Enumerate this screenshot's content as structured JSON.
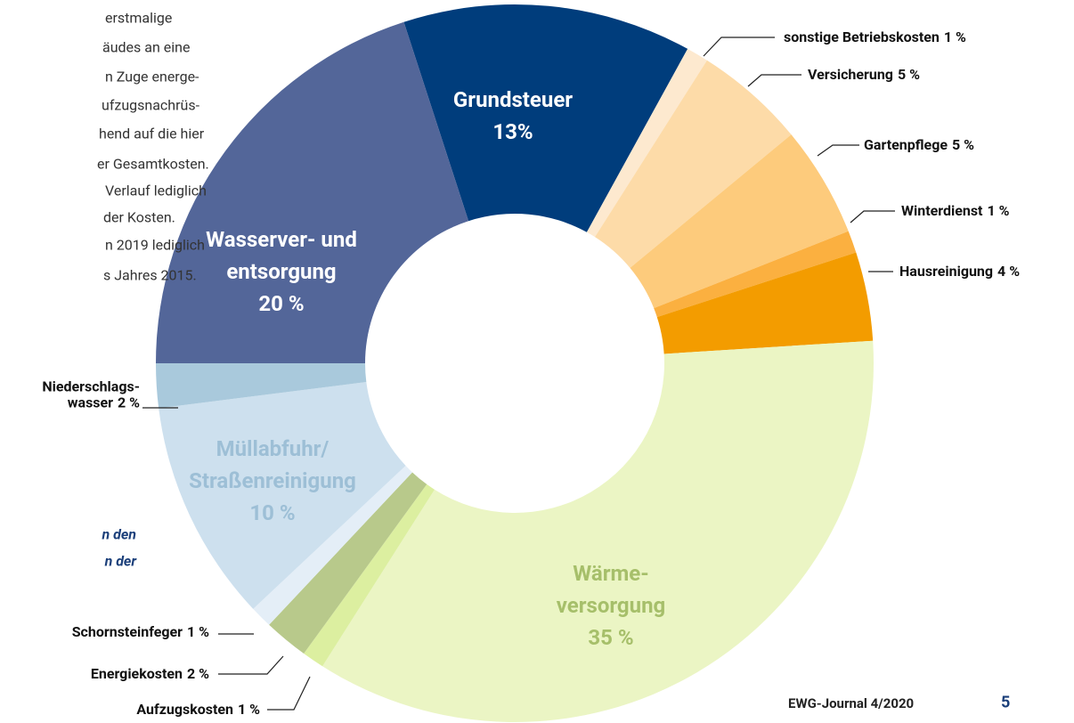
{
  "body_text": {
    "lines": [
      "erstmalige",
      "äudes an eine",
      "n Zuge energe-",
      "ufzugsnachrüs-",
      "hend auf die hier",
      "er Gesamtkosten.",
      "Verlauf lediglich",
      "der Kosten.",
      "n 2019 lediglich",
      "s Jahres 2015."
    ],
    "caption": [
      "n den",
      "n der"
    ]
  },
  "footer": {
    "journal": "EWG-Journal 4/2020",
    "page": "5"
  },
  "chart_data": {
    "type": "donut",
    "categories": [
      "Grundsteuer",
      "sonstige Betriebskosten",
      "Versicherung",
      "Gartenpflege",
      "Winterdienst",
      "Hausreinigung",
      "Wärme-\nversorgung",
      "Aufzugskosten",
      "Energiekosten",
      "Schornsteinfeger",
      "Müllabfuhr/\nStraßenreinigung",
      "Niederschlags-\nwasser",
      "Wasserver- und\nentsorgung"
    ],
    "values": [
      13,
      1,
      5,
      5,
      1,
      4,
      35,
      1,
      2,
      1,
      10,
      2,
      20
    ],
    "value_labels": [
      "13%",
      "1 %",
      "5 %",
      "5 %",
      "1 %",
      "4 %",
      "35 %",
      "1 %",
      "2 %",
      "1 %",
      "10 %",
      "2 %",
      "20 %"
    ],
    "colors": [
      "#003d7c",
      "#fde9cf",
      "#fddba8",
      "#fdcb7c",
      "#fbb040",
      "#f39c00",
      "#ebf5c4",
      "#dcefa0",
      "#b8c98b",
      "#e4eef7",
      "#cde0ee",
      "#a9c9dc",
      "#536699"
    ]
  }
}
